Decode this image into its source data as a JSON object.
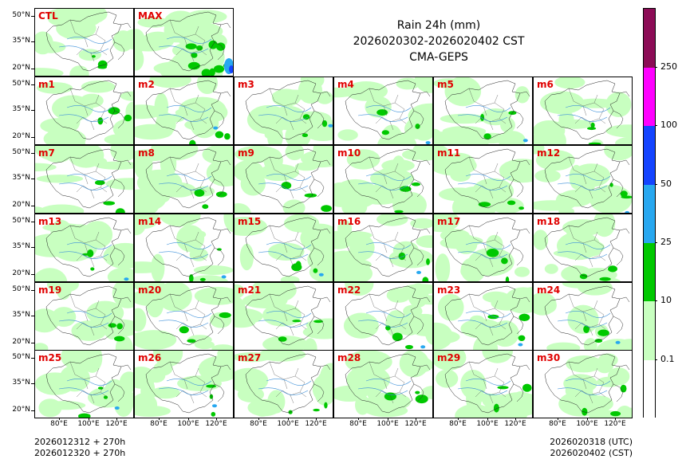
{
  "title": {
    "line1": "Rain 24h (mm)",
    "line2": "2026020302-2026020402 CST",
    "line3": "CMA-GEPS"
  },
  "panels_top": [
    "CTL",
    "MAX"
  ],
  "panels": [
    "m1",
    "m2",
    "m3",
    "m4",
    "m5",
    "m6",
    "m7",
    "m8",
    "m9",
    "m10",
    "m11",
    "m12",
    "m13",
    "m14",
    "m15",
    "m16",
    "m17",
    "m18",
    "m19",
    "m20",
    "m21",
    "m22",
    "m23",
    "m24",
    "m25",
    "m26",
    "m27",
    "m28",
    "m29",
    "m30"
  ],
  "y_axis_labels": [
    "50°N",
    "35°N",
    "20°N"
  ],
  "x_axis_labels": [
    "80°E",
    "100°E",
    "120°E"
  ],
  "footer": {
    "left_line1": "2026012312 + 270h",
    "left_line2": "2026012320 + 270h",
    "right_line1": "2026020318 (UTC)",
    "right_line2": "2026020402 (CST)"
  },
  "colorbar": {
    "labels": [
      "0.1",
      "10",
      "25",
      "50",
      "100",
      "250"
    ],
    "colors": [
      "#ffffff",
      "#c8ffc0",
      "#00c800",
      "#28a8f0",
      "#1444ff",
      "#ff00ff",
      "#8c0c56"
    ]
  }
}
